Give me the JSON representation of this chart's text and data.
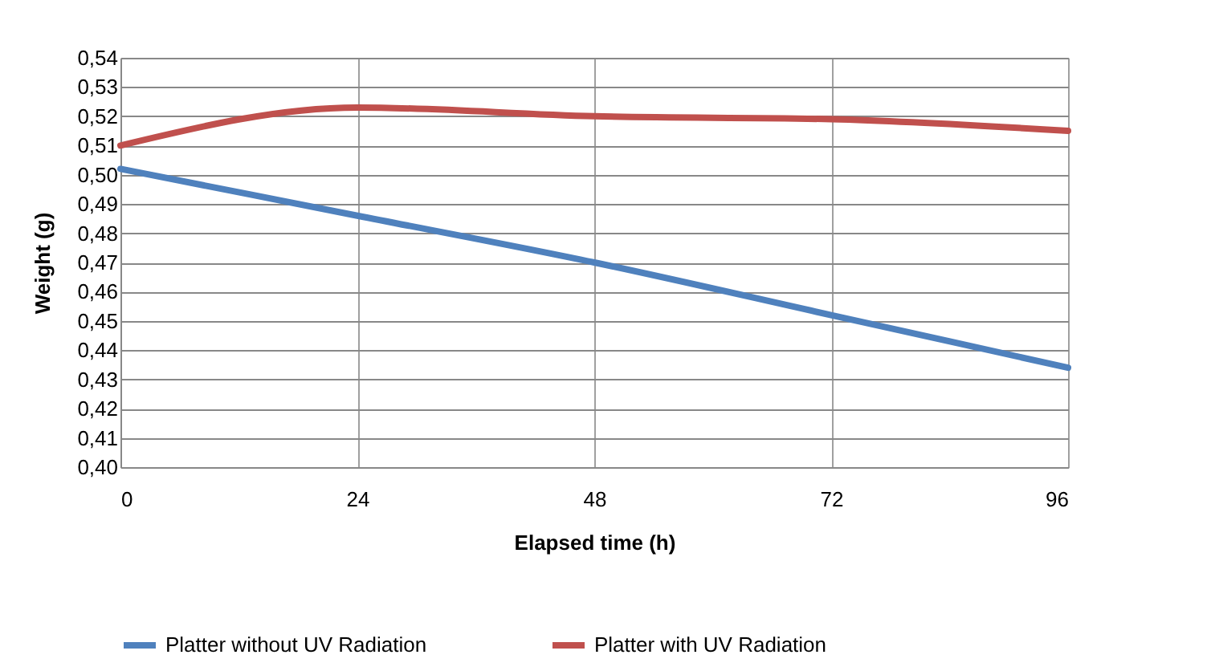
{
  "chart_data": {
    "type": "line",
    "xlabel": "Elapsed time (h)",
    "ylabel": "Weight (g)",
    "x": [
      0,
      24,
      48,
      72,
      96
    ],
    "series": [
      {
        "name": "Platter without UV Radiation",
        "color": "#4f81bd",
        "values": [
          0.502,
          0.486,
          0.47,
          0.452,
          0.434
        ]
      },
      {
        "name": "Platter with UV Radiation",
        "color": "#c0504d",
        "values": [
          0.51,
          0.523,
          0.52,
          0.519,
          0.515
        ]
      }
    ],
    "xlim": [
      0,
      96
    ],
    "xticks": [
      0,
      24,
      48,
      72,
      96
    ],
    "ylim": [
      0.4,
      0.54
    ],
    "yticks": [
      {
        "value": 0.4,
        "label": "0,40"
      },
      {
        "value": 0.41,
        "label": "0,41"
      },
      {
        "value": 0.42,
        "label": "0,42"
      },
      {
        "value": 0.43,
        "label": "0,43"
      },
      {
        "value": 0.44,
        "label": "0,44"
      },
      {
        "value": 0.45,
        "label": "0,45"
      },
      {
        "value": 0.46,
        "label": "0,46"
      },
      {
        "value": 0.47,
        "label": "0,47"
      },
      {
        "value": 0.48,
        "label": "0,48"
      },
      {
        "value": 0.49,
        "label": "0,49"
      },
      {
        "value": 0.5,
        "label": "0,50"
      },
      {
        "value": 0.51,
        "label": "0,51"
      },
      {
        "value": 0.52,
        "label": "0,52"
      },
      {
        "value": 0.53,
        "label": "0,53"
      },
      {
        "value": 0.54,
        "label": "0,54"
      }
    ],
    "grid": true,
    "legend": "bottom",
    "marker": "none",
    "line_style": "solid"
  }
}
